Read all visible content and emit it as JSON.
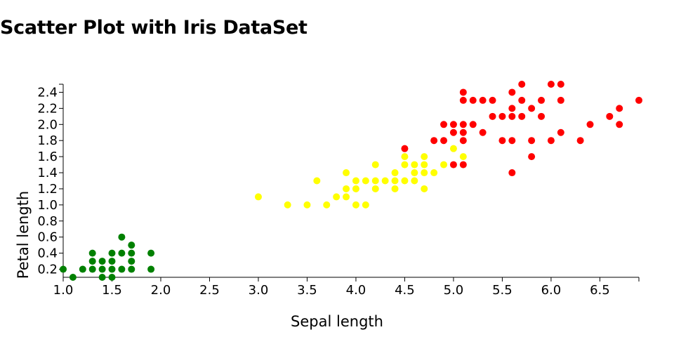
{
  "chart_data": {
    "type": "scatter",
    "title": "Scatter Plot with Iris DataSet",
    "xlabel": "Sepal length",
    "ylabel": "Petal length",
    "xlim": [
      1.0,
      6.9
    ],
    "ylim": [
      0.1,
      2.5
    ],
    "x_ticks": [
      "1.0",
      "1.5",
      "2.0",
      "2.5",
      "3.0",
      "3.5",
      "4.0",
      "4.5",
      "5.0",
      "5.5",
      "6.0",
      "6.5"
    ],
    "y_ticks": [
      "0.2",
      "0.4",
      "0.6",
      "0.8",
      "1.0",
      "1.2",
      "1.4",
      "1.6",
      "1.8",
      "2.0",
      "2.2",
      "2.4"
    ],
    "grid": false,
    "series": [
      {
        "color": "#008000",
        "points": [
          [
            1.0,
            0.2
          ],
          [
            1.1,
            0.1
          ],
          [
            1.2,
            0.2
          ],
          [
            1.3,
            0.2
          ],
          [
            1.3,
            0.3
          ],
          [
            1.3,
            0.4
          ],
          [
            1.4,
            0.1
          ],
          [
            1.4,
            0.2
          ],
          [
            1.4,
            0.3
          ],
          [
            1.5,
            0.1
          ],
          [
            1.5,
            0.2
          ],
          [
            1.5,
            0.3
          ],
          [
            1.5,
            0.4
          ],
          [
            1.6,
            0.2
          ],
          [
            1.6,
            0.4
          ],
          [
            1.6,
            0.6
          ],
          [
            1.7,
            0.2
          ],
          [
            1.7,
            0.3
          ],
          [
            1.7,
            0.4
          ],
          [
            1.7,
            0.5
          ],
          [
            1.9,
            0.2
          ],
          [
            1.9,
            0.4
          ]
        ]
      },
      {
        "color": "#ffff00",
        "points": [
          [
            3.0,
            1.1
          ],
          [
            3.3,
            1.0
          ],
          [
            3.5,
            1.0
          ],
          [
            3.6,
            1.3
          ],
          [
            3.7,
            1.0
          ],
          [
            3.8,
            1.1
          ],
          [
            3.9,
            1.1
          ],
          [
            3.9,
            1.2
          ],
          [
            3.9,
            1.4
          ],
          [
            4.0,
            1.0
          ],
          [
            4.0,
            1.2
          ],
          [
            4.0,
            1.3
          ],
          [
            4.1,
            1.0
          ],
          [
            4.1,
            1.3
          ],
          [
            4.2,
            1.2
          ],
          [
            4.2,
            1.3
          ],
          [
            4.2,
            1.5
          ],
          [
            4.3,
            1.3
          ],
          [
            4.4,
            1.2
          ],
          [
            4.4,
            1.3
          ],
          [
            4.4,
            1.4
          ],
          [
            4.5,
            1.3
          ],
          [
            4.5,
            1.5
          ],
          [
            4.5,
            1.6
          ],
          [
            4.6,
            1.3
          ],
          [
            4.6,
            1.4
          ],
          [
            4.6,
            1.5
          ],
          [
            4.7,
            1.2
          ],
          [
            4.7,
            1.4
          ],
          [
            4.7,
            1.5
          ],
          [
            4.7,
            1.6
          ],
          [
            4.8,
            1.4
          ],
          [
            4.9,
            1.5
          ],
          [
            5.0,
            1.7
          ],
          [
            5.1,
            1.6
          ]
        ]
      },
      {
        "color": "#ff0000",
        "points": [
          [
            4.5,
            1.7
          ],
          [
            4.8,
            1.8
          ],
          [
            4.9,
            1.8
          ],
          [
            4.9,
            2.0
          ],
          [
            5.0,
            1.5
          ],
          [
            5.0,
            1.9
          ],
          [
            5.0,
            2.0
          ],
          [
            5.1,
            1.5
          ],
          [
            5.1,
            1.8
          ],
          [
            5.1,
            1.9
          ],
          [
            5.1,
            2.0
          ],
          [
            5.1,
            2.3
          ],
          [
            5.1,
            2.4
          ],
          [
            5.2,
            2.0
          ],
          [
            5.2,
            2.3
          ],
          [
            5.3,
            1.9
          ],
          [
            5.3,
            2.3
          ],
          [
            5.4,
            2.1
          ],
          [
            5.4,
            2.3
          ],
          [
            5.5,
            1.8
          ],
          [
            5.5,
            2.1
          ],
          [
            5.6,
            1.4
          ],
          [
            5.6,
            1.8
          ],
          [
            5.6,
            2.1
          ],
          [
            5.6,
            2.2
          ],
          [
            5.6,
            2.4
          ],
          [
            5.7,
            2.1
          ],
          [
            5.7,
            2.3
          ],
          [
            5.7,
            2.5
          ],
          [
            5.8,
            1.6
          ],
          [
            5.8,
            1.8
          ],
          [
            5.8,
            2.2
          ],
          [
            5.9,
            2.1
          ],
          [
            5.9,
            2.3
          ],
          [
            6.0,
            1.8
          ],
          [
            6.0,
            2.5
          ],
          [
            6.1,
            1.9
          ],
          [
            6.1,
            2.3
          ],
          [
            6.1,
            2.5
          ],
          [
            6.3,
            1.8
          ],
          [
            6.4,
            2.0
          ],
          [
            6.6,
            2.1
          ],
          [
            6.7,
            2.0
          ],
          [
            6.7,
            2.2
          ],
          [
            6.9,
            2.3
          ]
        ]
      }
    ]
  }
}
